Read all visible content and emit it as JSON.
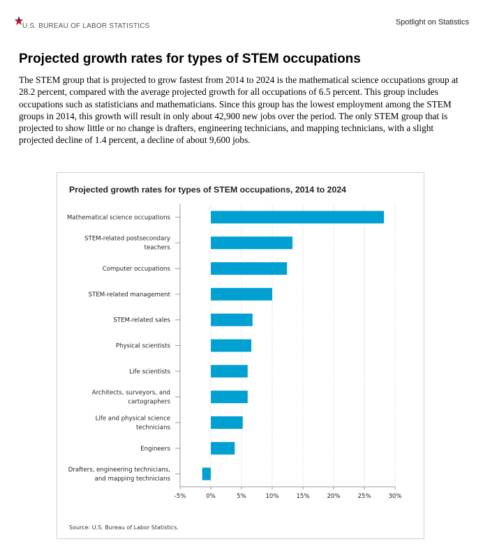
{
  "header": {
    "agency": "U.S. BUREAU OF LABOR STATISTICS",
    "spotlight": "Spotlight on Statistics",
    "star_color": "#c8102e",
    "star_accent_color": "#1a2a6c"
  },
  "page": {
    "title": "Projected growth rates for types of STEM occupations",
    "intro": "The STEM group that is projected to grow fastest from 2014 to 2024 is the mathematical science occupations group at 28.2 percent, compared with the average projected growth for all occupations of 6.5 percent. This group includes occupations such as statisticians and mathematicians. Since this group has the lowest employment among the STEM groups in 2014, this growth will result in only about 42,900 new jobs over the period. The only STEM group that is projected to show little or no change is drafters, engineering technicians, and mapping technicians, with a slight projected decline of 1.4 percent, a decline of about 9,600 jobs."
  },
  "chart_data": {
    "type": "bar",
    "orientation": "horizontal",
    "title": "Projected growth rates for types of STEM occupations, 2014 to 2024",
    "categories": [
      [
        "Mathematical science occupations"
      ],
      [
        "STEM-related postsecondary",
        "teachers"
      ],
      [
        "Computer occupations"
      ],
      [
        "STEM-related management"
      ],
      [
        "STEM-related sales"
      ],
      [
        "Physical scientists"
      ],
      [
        "Life scientists"
      ],
      [
        "Architects, surveyors, and",
        "cartographers"
      ],
      [
        "Life and physical science",
        "technicians"
      ],
      [
        "Engineers"
      ],
      [
        "Drafters, engineering technicians,",
        "and mapping technicians"
      ]
    ],
    "values": [
      28.2,
      13.3,
      12.4,
      10.0,
      6.8,
      6.6,
      6.0,
      6.0,
      5.2,
      3.9,
      -1.4
    ],
    "xlim": [
      -5,
      30
    ],
    "xticks": [
      -5,
      0,
      5,
      10,
      15,
      20,
      25,
      30
    ],
    "xtick_labels": [
      "-5%",
      "0%",
      "5%",
      "10%",
      "15%",
      "20%",
      "25%",
      "30%"
    ],
    "bar_color": "#00a0d2",
    "grid": "vertical-dotted",
    "source": "Source: U.S. Bureau of Labor Statistics."
  }
}
